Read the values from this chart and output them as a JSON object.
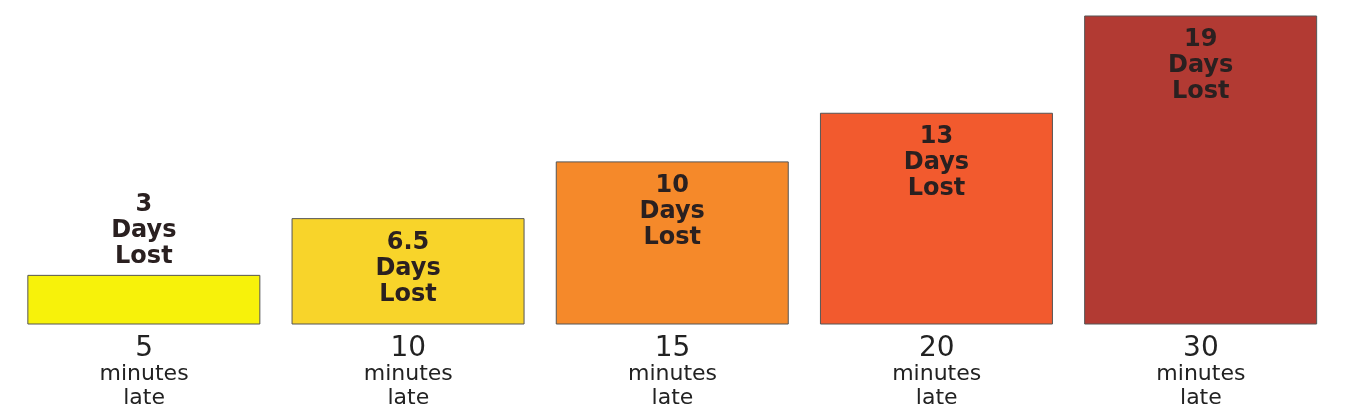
{
  "chart_data": {
    "type": "bar",
    "categories": [
      "5 minutes late",
      "10 minutes late",
      "15 minutes late",
      "20 minutes late",
      "30 minutes late"
    ],
    "values": [
      3,
      6.5,
      10,
      13,
      19
    ],
    "colors": [
      "#f7f20a",
      "#f8d42a",
      "#f5892a",
      "#f25a2e",
      "#b23a33"
    ],
    "value_labels": [
      "3 Days Lost",
      "6.5 Days Lost",
      "10 Days Lost",
      "13 Days Lost",
      "19 Days Lost"
    ]
  }
}
